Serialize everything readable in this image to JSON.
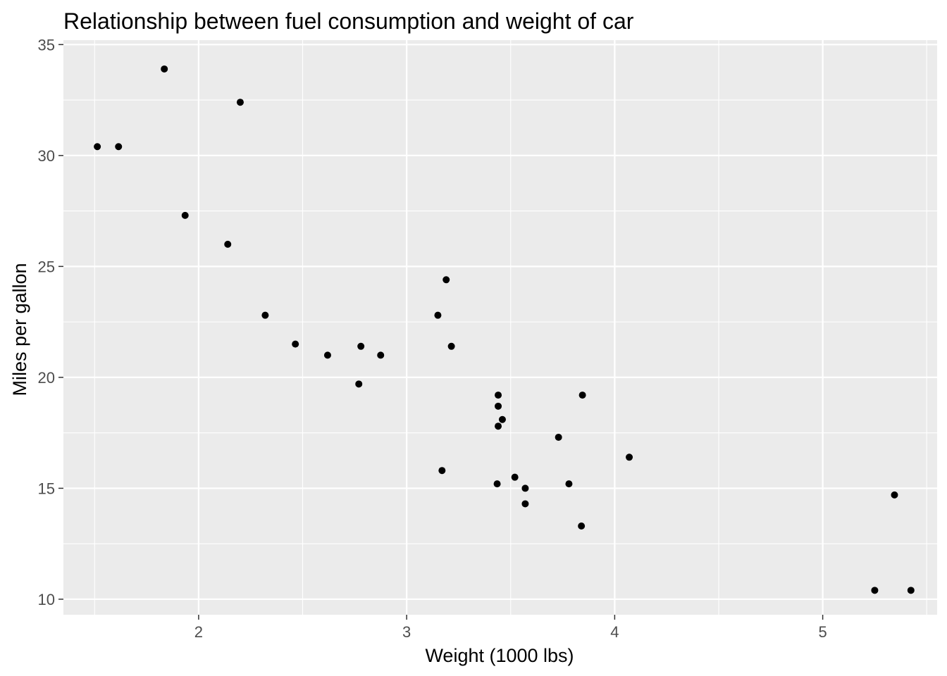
{
  "chart_data": {
    "type": "scatter",
    "title": "Relationship between fuel consumption and weight of car",
    "xlabel": "Weight (1000 lbs)",
    "ylabel": "Miles per gallon",
    "xlim": [
      1.35,
      5.55
    ],
    "ylim": [
      9.3,
      35.2
    ],
    "x_ticks": [
      2,
      3,
      4,
      5
    ],
    "x_tick_labels": [
      "2",
      "3",
      "4",
      "5"
    ],
    "x_minor_ticks": [
      1.5,
      2.5,
      3.5,
      4.5,
      5.5
    ],
    "y_ticks": [
      10,
      15,
      20,
      25,
      30,
      35
    ],
    "y_tick_labels": [
      "10",
      "15",
      "20",
      "25",
      "30",
      "35"
    ],
    "y_minor_ticks": [
      12.5,
      17.5,
      22.5,
      27.5,
      32.5
    ],
    "grid": true,
    "legend": "none",
    "panel_color": "#ebebeb",
    "grid_color": "#ffffff",
    "point_color": "#000000",
    "points": [
      {
        "x": 2.62,
        "y": 21.0
      },
      {
        "x": 2.875,
        "y": 21.0
      },
      {
        "x": 2.32,
        "y": 22.8
      },
      {
        "x": 3.215,
        "y": 21.4
      },
      {
        "x": 3.44,
        "y": 18.7
      },
      {
        "x": 3.46,
        "y": 18.1
      },
      {
        "x": 3.57,
        "y": 14.3
      },
      {
        "x": 3.19,
        "y": 24.4
      },
      {
        "x": 3.15,
        "y": 22.8
      },
      {
        "x": 3.44,
        "y": 19.2
      },
      {
        "x": 3.44,
        "y": 17.8
      },
      {
        "x": 4.07,
        "y": 16.4
      },
      {
        "x": 3.73,
        "y": 17.3
      },
      {
        "x": 3.78,
        "y": 15.2
      },
      {
        "x": 5.25,
        "y": 10.4
      },
      {
        "x": 5.424,
        "y": 10.4
      },
      {
        "x": 5.345,
        "y": 14.7
      },
      {
        "x": 2.2,
        "y": 32.4
      },
      {
        "x": 1.615,
        "y": 30.4
      },
      {
        "x": 1.835,
        "y": 33.9
      },
      {
        "x": 2.465,
        "y": 21.5
      },
      {
        "x": 3.52,
        "y": 15.5
      },
      {
        "x": 3.435,
        "y": 15.2
      },
      {
        "x": 3.84,
        "y": 13.3
      },
      {
        "x": 3.845,
        "y": 19.2
      },
      {
        "x": 1.935,
        "y": 27.3
      },
      {
        "x": 2.14,
        "y": 26.0
      },
      {
        "x": 1.513,
        "y": 30.4
      },
      {
        "x": 3.17,
        "y": 15.8
      },
      {
        "x": 2.77,
        "y": 19.7
      },
      {
        "x": 3.57,
        "y": 15.0
      },
      {
        "x": 2.78,
        "y": 21.4
      }
    ]
  }
}
